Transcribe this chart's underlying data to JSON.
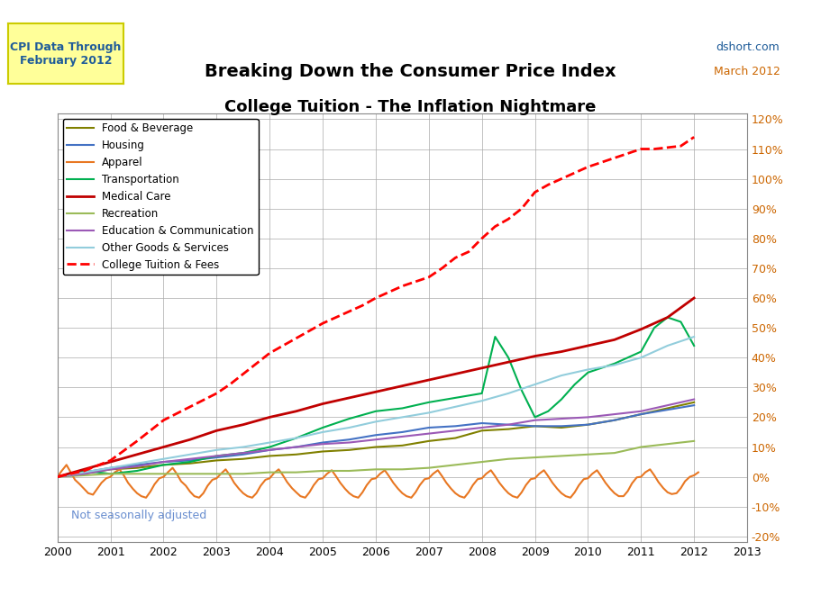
{
  "title1": "Breaking Down the Consumer Price Index",
  "title2": "College Tuition - The Inflation Nightmare",
  "header_box_text": "CPI Data Through\nFebruary 2012",
  "source_text": "dshort.com",
  "date_text": "March 2012",
  "watermark": "Not seasonally adjusted",
  "xlim": [
    2000,
    2013
  ],
  "ylim": [
    -0.22,
    1.22
  ],
  "yticks": [
    -0.2,
    -0.1,
    0.0,
    0.1,
    0.2,
    0.3,
    0.4,
    0.5,
    0.6,
    0.7,
    0.8,
    0.9,
    1.0,
    1.1,
    1.2
  ],
  "xticks": [
    2000,
    2001,
    2002,
    2003,
    2004,
    2005,
    2006,
    2007,
    2008,
    2009,
    2010,
    2011,
    2012,
    2013
  ],
  "series": {
    "Food & Beverage": {
      "color": "#808000",
      "lw": 1.5,
      "ls": "-",
      "data_x": [
        2000,
        2000.5,
        2001,
        2001.5,
        2002,
        2002.5,
        2003,
        2003.5,
        2004,
        2004.5,
        2005,
        2005.5,
        2006,
        2006.5,
        2007,
        2007.5,
        2008,
        2008.5,
        2009,
        2009.5,
        2010,
        2010.5,
        2011,
        2011.5,
        2012
      ],
      "data_y": [
        0.0,
        0.01,
        0.025,
        0.03,
        0.04,
        0.045,
        0.055,
        0.06,
        0.07,
        0.075,
        0.085,
        0.09,
        0.1,
        0.105,
        0.12,
        0.13,
        0.155,
        0.16,
        0.17,
        0.165,
        0.175,
        0.19,
        0.21,
        0.23,
        0.25
      ]
    },
    "Housing": {
      "color": "#4472C4",
      "lw": 1.5,
      "ls": "-",
      "data_x": [
        2000,
        2000.5,
        2001,
        2001.5,
        2002,
        2002.5,
        2003,
        2003.5,
        2004,
        2004.5,
        2005,
        2005.5,
        2006,
        2006.5,
        2007,
        2007.5,
        2008,
        2008.5,
        2009,
        2009.5,
        2010,
        2010.5,
        2011,
        2011.5,
        2012
      ],
      "data_y": [
        0.0,
        0.015,
        0.03,
        0.04,
        0.05,
        0.055,
        0.065,
        0.075,
        0.09,
        0.1,
        0.115,
        0.125,
        0.14,
        0.15,
        0.165,
        0.17,
        0.18,
        0.175,
        0.17,
        0.17,
        0.175,
        0.19,
        0.21,
        0.225,
        0.24
      ]
    },
    "Apparel": {
      "color": "#E87722",
      "lw": 1.5,
      "ls": "-",
      "data_x": [
        2000,
        2000.08,
        2000.17,
        2000.25,
        2000.33,
        2000.42,
        2000.5,
        2000.58,
        2000.67,
        2000.75,
        2000.83,
        2000.92,
        2001,
        2001.08,
        2001.17,
        2001.25,
        2001.33,
        2001.42,
        2001.5,
        2001.58,
        2001.67,
        2001.75,
        2001.83,
        2001.92,
        2002,
        2002.08,
        2002.17,
        2002.25,
        2002.33,
        2002.42,
        2002.5,
        2002.58,
        2002.67,
        2002.75,
        2002.83,
        2002.92,
        2003,
        2003.08,
        2003.17,
        2003.25,
        2003.33,
        2003.42,
        2003.5,
        2003.58,
        2003.67,
        2003.75,
        2003.83,
        2003.92,
        2004,
        2004.08,
        2004.17,
        2004.25,
        2004.33,
        2004.42,
        2004.5,
        2004.58,
        2004.67,
        2004.75,
        2004.83,
        2004.92,
        2005,
        2005.08,
        2005.17,
        2005.25,
        2005.33,
        2005.42,
        2005.5,
        2005.58,
        2005.67,
        2005.75,
        2005.83,
        2005.92,
        2006,
        2006.08,
        2006.17,
        2006.25,
        2006.33,
        2006.42,
        2006.5,
        2006.58,
        2006.67,
        2006.75,
        2006.83,
        2006.92,
        2007,
        2007.08,
        2007.17,
        2007.25,
        2007.33,
        2007.42,
        2007.5,
        2007.58,
        2007.67,
        2007.75,
        2007.83,
        2007.92,
        2008,
        2008.08,
        2008.17,
        2008.25,
        2008.33,
        2008.42,
        2008.5,
        2008.58,
        2008.67,
        2008.75,
        2008.83,
        2008.92,
        2009,
        2009.08,
        2009.17,
        2009.25,
        2009.33,
        2009.42,
        2009.5,
        2009.58,
        2009.67,
        2009.75,
        2009.83,
        2009.92,
        2010,
        2010.08,
        2010.17,
        2010.25,
        2010.33,
        2010.42,
        2010.5,
        2010.58,
        2010.67,
        2010.75,
        2010.83,
        2010.92,
        2011,
        2011.08,
        2011.17,
        2011.25,
        2011.33,
        2011.42,
        2011.5,
        2011.58,
        2011.67,
        2011.75,
        2011.83,
        2011.92,
        2012,
        2012.08
      ],
      "data_y": [
        0.0,
        0.02,
        0.04,
        0.015,
        -0.01,
        -0.025,
        -0.04,
        -0.055,
        -0.06,
        -0.04,
        -0.02,
        -0.005,
        0.0,
        0.015,
        0.025,
        0.005,
        -0.02,
        -0.04,
        -0.055,
        -0.065,
        -0.07,
        -0.05,
        -0.025,
        -0.005,
        0.0,
        0.015,
        0.03,
        0.01,
        -0.015,
        -0.03,
        -0.05,
        -0.065,
        -0.07,
        -0.055,
        -0.03,
        -0.01,
        -0.005,
        0.01,
        0.025,
        0.005,
        -0.02,
        -0.04,
        -0.055,
        -0.065,
        -0.07,
        -0.055,
        -0.03,
        -0.01,
        -0.005,
        0.012,
        0.025,
        0.005,
        -0.018,
        -0.038,
        -0.052,
        -0.065,
        -0.07,
        -0.052,
        -0.028,
        -0.008,
        -0.005,
        0.01,
        0.022,
        0.002,
        -0.02,
        -0.04,
        -0.055,
        -0.065,
        -0.07,
        -0.052,
        -0.028,
        -0.008,
        -0.005,
        0.01,
        0.022,
        0.002,
        -0.02,
        -0.04,
        -0.055,
        -0.065,
        -0.07,
        -0.052,
        -0.028,
        -0.008,
        -0.005,
        0.01,
        0.022,
        0.002,
        -0.02,
        -0.04,
        -0.055,
        -0.065,
        -0.07,
        -0.052,
        -0.028,
        -0.008,
        -0.005,
        0.01,
        0.022,
        0.002,
        -0.02,
        -0.04,
        -0.055,
        -0.065,
        -0.07,
        -0.052,
        -0.028,
        -0.008,
        -0.005,
        0.01,
        0.022,
        0.002,
        -0.02,
        -0.04,
        -0.055,
        -0.065,
        -0.07,
        -0.052,
        -0.028,
        -0.008,
        -0.005,
        0.01,
        0.022,
        0.002,
        -0.02,
        -0.04,
        -0.055,
        -0.065,
        -0.065,
        -0.048,
        -0.022,
        -0.002,
        0.0,
        0.015,
        0.025,
        0.005,
        -0.018,
        -0.038,
        -0.052,
        -0.058,
        -0.055,
        -0.038,
        -0.015,
        0.0,
        0.005,
        0.015
      ]
    },
    "Transportation": {
      "color": "#00B050",
      "lw": 1.5,
      "ls": "-",
      "data_x": [
        2000,
        2000.5,
        2001,
        2001.5,
        2002,
        2002.5,
        2003,
        2003.5,
        2004,
        2004.5,
        2005,
        2005.5,
        2006,
        2006.5,
        2007,
        2007.5,
        2008,
        2008.25,
        2008.5,
        2008.75,
        2009,
        2009.25,
        2009.5,
        2009.75,
        2010,
        2010.5,
        2011,
        2011.25,
        2011.5,
        2011.75,
        2012
      ],
      "data_y": [
        0.0,
        0.02,
        0.01,
        0.02,
        0.04,
        0.05,
        0.07,
        0.08,
        0.1,
        0.13,
        0.165,
        0.195,
        0.22,
        0.23,
        0.25,
        0.265,
        0.28,
        0.47,
        0.4,
        0.29,
        0.2,
        0.22,
        0.26,
        0.31,
        0.35,
        0.38,
        0.42,
        0.5,
        0.535,
        0.52,
        0.44
      ]
    },
    "Medical Care": {
      "color": "#C00000",
      "lw": 2.0,
      "ls": "-",
      "data_x": [
        2000,
        2000.5,
        2001,
        2001.5,
        2002,
        2002.5,
        2003,
        2003.5,
        2004,
        2004.5,
        2005,
        2005.5,
        2006,
        2006.5,
        2007,
        2007.5,
        2008,
        2008.5,
        2009,
        2009.5,
        2010,
        2010.5,
        2011,
        2011.5,
        2012
      ],
      "data_y": [
        0.0,
        0.025,
        0.05,
        0.075,
        0.1,
        0.125,
        0.155,
        0.175,
        0.2,
        0.22,
        0.245,
        0.265,
        0.285,
        0.305,
        0.325,
        0.345,
        0.365,
        0.385,
        0.405,
        0.42,
        0.44,
        0.46,
        0.495,
        0.535,
        0.6
      ]
    },
    "Recreation": {
      "color": "#9BBB59",
      "lw": 1.5,
      "ls": "-",
      "data_x": [
        2000,
        2000.5,
        2001,
        2001.5,
        2002,
        2002.5,
        2003,
        2003.5,
        2004,
        2004.5,
        2005,
        2005.5,
        2006,
        2006.5,
        2007,
        2007.5,
        2008,
        2008.5,
        2009,
        2009.5,
        2010,
        2010.5,
        2011,
        2011.5,
        2012
      ],
      "data_y": [
        0.0,
        0.005,
        0.01,
        0.01,
        0.01,
        0.01,
        0.01,
        0.01,
        0.015,
        0.015,
        0.02,
        0.02,
        0.025,
        0.025,
        0.03,
        0.04,
        0.05,
        0.06,
        0.065,
        0.07,
        0.075,
        0.08,
        0.1,
        0.11,
        0.12
      ]
    },
    "Education & Communication": {
      "color": "#9B59B6",
      "lw": 1.5,
      "ls": "-",
      "data_x": [
        2000,
        2000.5,
        2001,
        2001.5,
        2002,
        2002.5,
        2003,
        2003.5,
        2004,
        2004.5,
        2005,
        2005.5,
        2006,
        2006.5,
        2007,
        2007.5,
        2008,
        2008.5,
        2009,
        2009.5,
        2010,
        2010.5,
        2011,
        2011.5,
        2012
      ],
      "data_y": [
        0.0,
        0.01,
        0.025,
        0.035,
        0.05,
        0.06,
        0.07,
        0.08,
        0.09,
        0.1,
        0.11,
        0.115,
        0.125,
        0.135,
        0.145,
        0.155,
        0.165,
        0.175,
        0.19,
        0.195,
        0.2,
        0.21,
        0.22,
        0.24,
        0.26
      ]
    },
    "Other Goods & Services": {
      "color": "#92CDDC",
      "lw": 1.5,
      "ls": "-",
      "data_x": [
        2000,
        2000.5,
        2001,
        2001.5,
        2002,
        2002.5,
        2003,
        2003.5,
        2004,
        2004.5,
        2005,
        2005.5,
        2006,
        2006.5,
        2007,
        2007.5,
        2008,
        2008.5,
        2009,
        2009.5,
        2010,
        2010.5,
        2011,
        2011.5,
        2012
      ],
      "data_y": [
        0.0,
        0.015,
        0.03,
        0.045,
        0.06,
        0.075,
        0.09,
        0.1,
        0.115,
        0.13,
        0.15,
        0.165,
        0.185,
        0.2,
        0.215,
        0.235,
        0.255,
        0.28,
        0.31,
        0.34,
        0.36,
        0.375,
        0.4,
        0.44,
        0.47
      ]
    },
    "College Tuition & Fees": {
      "color": "#FF0000",
      "lw": 2.0,
      "ls": "--",
      "data_x": [
        2000,
        2000.5,
        2001,
        2001.5,
        2002,
        2002.5,
        2003,
        2003.25,
        2003.5,
        2003.75,
        2004,
        2004.25,
        2004.5,
        2004.75,
        2005,
        2005.25,
        2005.5,
        2005.75,
        2006,
        2006.25,
        2006.5,
        2006.75,
        2007,
        2007.25,
        2007.5,
        2007.75,
        2008,
        2008.25,
        2008.5,
        2008.75,
        2009,
        2009.25,
        2009.5,
        2009.75,
        2010,
        2010.25,
        2010.5,
        2010.75,
        2011,
        2011.25,
        2011.5,
        2011.75,
        2012
      ],
      "data_y": [
        0.0,
        0.02,
        0.055,
        0.12,
        0.19,
        0.235,
        0.28,
        0.31,
        0.345,
        0.38,
        0.415,
        0.44,
        0.465,
        0.49,
        0.515,
        0.535,
        0.555,
        0.575,
        0.6,
        0.62,
        0.64,
        0.655,
        0.67,
        0.7,
        0.735,
        0.755,
        0.8,
        0.84,
        0.865,
        0.9,
        0.955,
        0.98,
        1.0,
        1.02,
        1.04,
        1.055,
        1.07,
        1.085,
        1.1,
        1.1,
        1.105,
        1.11,
        1.14
      ]
    }
  },
  "legend_order": [
    "Food & Beverage",
    "Housing",
    "Apparel",
    "Transportation",
    "Medical Care",
    "Recreation",
    "Education & Communication",
    "Other Goods & Services",
    "College Tuition & Fees"
  ],
  "bg_color": "#FFFFFF",
  "grid_color": "#AAAAAA",
  "box_color": "#FFFF99",
  "box_border_color": "#CCCC00"
}
